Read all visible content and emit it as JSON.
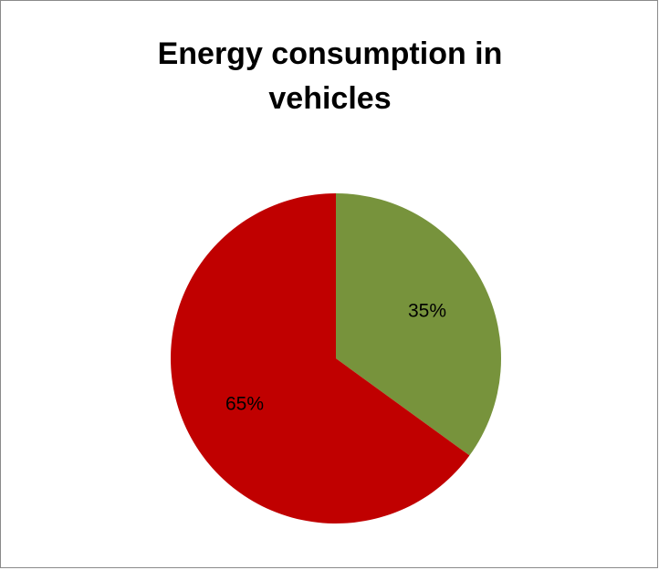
{
  "chart_data": {
    "type": "pie",
    "title_lines": [
      "Energy consumption  in",
      "vehicles"
    ],
    "slices": [
      {
        "value": 35,
        "label": "35%",
        "color": "#77933c"
      },
      {
        "value": 65,
        "label": "65%",
        "color": "#c00000"
      }
    ],
    "legend": "none"
  }
}
